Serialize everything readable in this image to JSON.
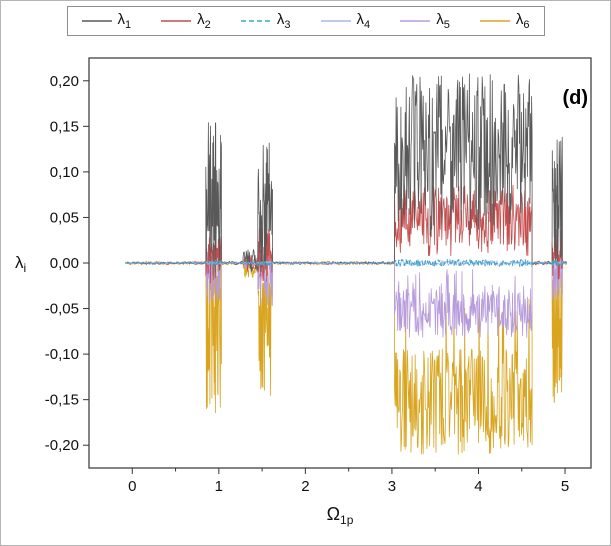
{
  "figure": {
    "annotation": "(d)"
  },
  "chart_data": {
    "type": "line",
    "title": "",
    "xlabel": {
      "main": "Ω",
      "sub": "1p"
    },
    "ylabel": {
      "main": "λ",
      "sub": "i"
    },
    "xlim": [
      -0.5,
      5.3
    ],
    "ylim": [
      -0.225,
      0.225
    ],
    "x_ticks": [
      0,
      1,
      2,
      3,
      4,
      5
    ],
    "x_tick_labels": [
      "0",
      "1",
      "2",
      "3",
      "4",
      "5"
    ],
    "x_minor_ticks": [
      0.5,
      1.5,
      2.5,
      3.5,
      4.5
    ],
    "y_ticks": [
      0.2,
      0.15,
      0.1,
      0.05,
      0.0,
      -0.05,
      -0.1,
      -0.15,
      -0.2
    ],
    "y_tick_labels": [
      "0,20",
      "0,15",
      "0,10",
      "0,05",
      "0,00",
      "-0,05",
      "-0,10",
      "-0,15",
      "-0,20"
    ],
    "grid": false,
    "legend_position": "top",
    "frame_color": "#333333",
    "tick_label_color": "#111111",
    "seed": 42,
    "description": "Lyapunov exponent spectrum vs excitation frequency: near-zero exponents with chaotic bursts around 0.85-1.03, 1.45-1.62, a wide chaotic band 3.03-4.62 (lambda1 ~ +0.10..0.20, lambda2 ~ +0.03..0.08, lambda5 ~ -0.03..-0.08, lambda6 ~ -0.10..-0.21), and a final burst at 4.85-4.97",
    "draw_order": [
      5,
      4,
      1,
      0,
      3,
      2
    ],
    "series": [
      {
        "name": "λ",
        "sub": "1",
        "color": "#595959",
        "dash": null,
        "width": 0.8,
        "segments": [
          [
            -0.08,
            0.85,
            0,
            0.0015,
            70
          ],
          [
            0.85,
            1.03,
            0.07,
            0.085,
            55
          ],
          [
            1.03,
            1.28,
            0,
            0.002,
            20
          ],
          [
            1.28,
            1.45,
            0.003,
            0.013,
            28
          ],
          [
            1.45,
            1.62,
            0.062,
            0.072,
            50
          ],
          [
            1.62,
            3.03,
            0,
            0.0015,
            110
          ],
          [
            3.03,
            4.62,
            0.13,
            0.078,
            260
          ],
          [
            4.62,
            4.85,
            0,
            0.002,
            18
          ],
          [
            4.85,
            4.97,
            0.068,
            0.07,
            40
          ],
          [
            4.97,
            5.02,
            0,
            0.002,
            6
          ]
        ]
      },
      {
        "name": "λ",
        "sub": "2",
        "color": "#c44e4e",
        "dash": null,
        "width": 0.8,
        "segments": [
          [
            -0.08,
            0.85,
            0,
            0.0012,
            70
          ],
          [
            0.85,
            1.03,
            0.008,
            0.03,
            55
          ],
          [
            1.03,
            1.28,
            0,
            0.0012,
            20
          ],
          [
            1.28,
            1.45,
            0,
            0.009,
            28
          ],
          [
            1.45,
            1.62,
            0.01,
            0.032,
            50
          ],
          [
            1.62,
            3.03,
            0,
            0.0012,
            110
          ],
          [
            3.03,
            4.62,
            0.052,
            0.034,
            260
          ],
          [
            4.62,
            4.85,
            0,
            0.0015,
            18
          ],
          [
            4.85,
            4.97,
            0.01,
            0.028,
            40
          ],
          [
            4.97,
            5.02,
            0,
            0.0015,
            6
          ]
        ]
      },
      {
        "name": "λ",
        "sub": "3",
        "color": "#3aa6c9",
        "dash": "5,3",
        "width": 1,
        "segments": [
          [
            -0.08,
            0.85,
            0,
            0.001,
            60
          ],
          [
            0.85,
            1.03,
            0,
            0.003,
            30
          ],
          [
            1.03,
            1.28,
            0,
            0.001,
            15
          ],
          [
            1.28,
            1.45,
            0,
            0.002,
            15
          ],
          [
            1.45,
            1.62,
            0,
            0.003,
            30
          ],
          [
            1.62,
            3.03,
            0,
            0.001,
            90
          ],
          [
            3.03,
            4.62,
            0,
            0.004,
            200
          ],
          [
            4.62,
            4.85,
            0,
            0.001,
            15
          ],
          [
            4.85,
            4.97,
            0,
            0.003,
            20
          ],
          [
            4.97,
            5.02,
            0,
            0.001,
            5
          ]
        ]
      },
      {
        "name": "λ",
        "sub": "4",
        "color": "#a9b7e6",
        "dash": null,
        "width": 0.8,
        "segments": [
          [
            -0.08,
            0.85,
            0,
            0.0008,
            60
          ],
          [
            0.85,
            1.03,
            0,
            0.002,
            30
          ],
          [
            1.03,
            1.28,
            0,
            0.0008,
            15
          ],
          [
            1.28,
            1.45,
            0,
            0.0015,
            15
          ],
          [
            1.45,
            1.62,
            0,
            0.002,
            30
          ],
          [
            1.62,
            3.03,
            0,
            0.0008,
            90
          ],
          [
            3.03,
            4.62,
            0,
            0.003,
            200
          ],
          [
            4.62,
            4.85,
            0,
            0.0008,
            15
          ],
          [
            4.85,
            4.97,
            0,
            0.002,
            20
          ],
          [
            4.97,
            5.02,
            0,
            0.0008,
            5
          ]
        ]
      },
      {
        "name": "λ",
        "sub": "5",
        "color": "#b79bdd",
        "dash": null,
        "width": 0.8,
        "segments": [
          [
            -0.08,
            0.85,
            0,
            0.0012,
            70
          ],
          [
            0.85,
            1.03,
            -0.018,
            0.03,
            55
          ],
          [
            1.03,
            1.28,
            0,
            0.0012,
            20
          ],
          [
            1.28,
            1.45,
            0,
            0.006,
            28
          ],
          [
            1.45,
            1.62,
            -0.018,
            0.03,
            50
          ],
          [
            1.62,
            3.03,
            0,
            0.0012,
            110
          ],
          [
            3.03,
            4.62,
            -0.055,
            0.027,
            260
          ],
          [
            4.62,
            4.85,
            0,
            0.0015,
            18
          ],
          [
            4.85,
            4.97,
            -0.016,
            0.026,
            40
          ],
          [
            4.97,
            5.02,
            0,
            0.0015,
            6
          ]
        ]
      },
      {
        "name": "λ",
        "sub": "6",
        "color": "#d9a520",
        "dash": null,
        "width": 0.8,
        "segments": [
          [
            -0.08,
            0.85,
            0,
            0.002,
            70
          ],
          [
            0.85,
            1.03,
            -0.08,
            0.085,
            55
          ],
          [
            1.03,
            1.28,
            0,
            0.002,
            20
          ],
          [
            1.28,
            1.45,
            -0.004,
            0.012,
            28
          ],
          [
            1.45,
            1.62,
            -0.072,
            0.075,
            50
          ],
          [
            1.62,
            3.03,
            0,
            0.002,
            110
          ],
          [
            3.03,
            4.62,
            -0.152,
            0.058,
            260
          ],
          [
            4.62,
            4.85,
            0,
            0.002,
            18
          ],
          [
            4.85,
            4.97,
            -0.078,
            0.075,
            40
          ],
          [
            4.97,
            5.02,
            0,
            0.002,
            6
          ]
        ]
      }
    ]
  }
}
